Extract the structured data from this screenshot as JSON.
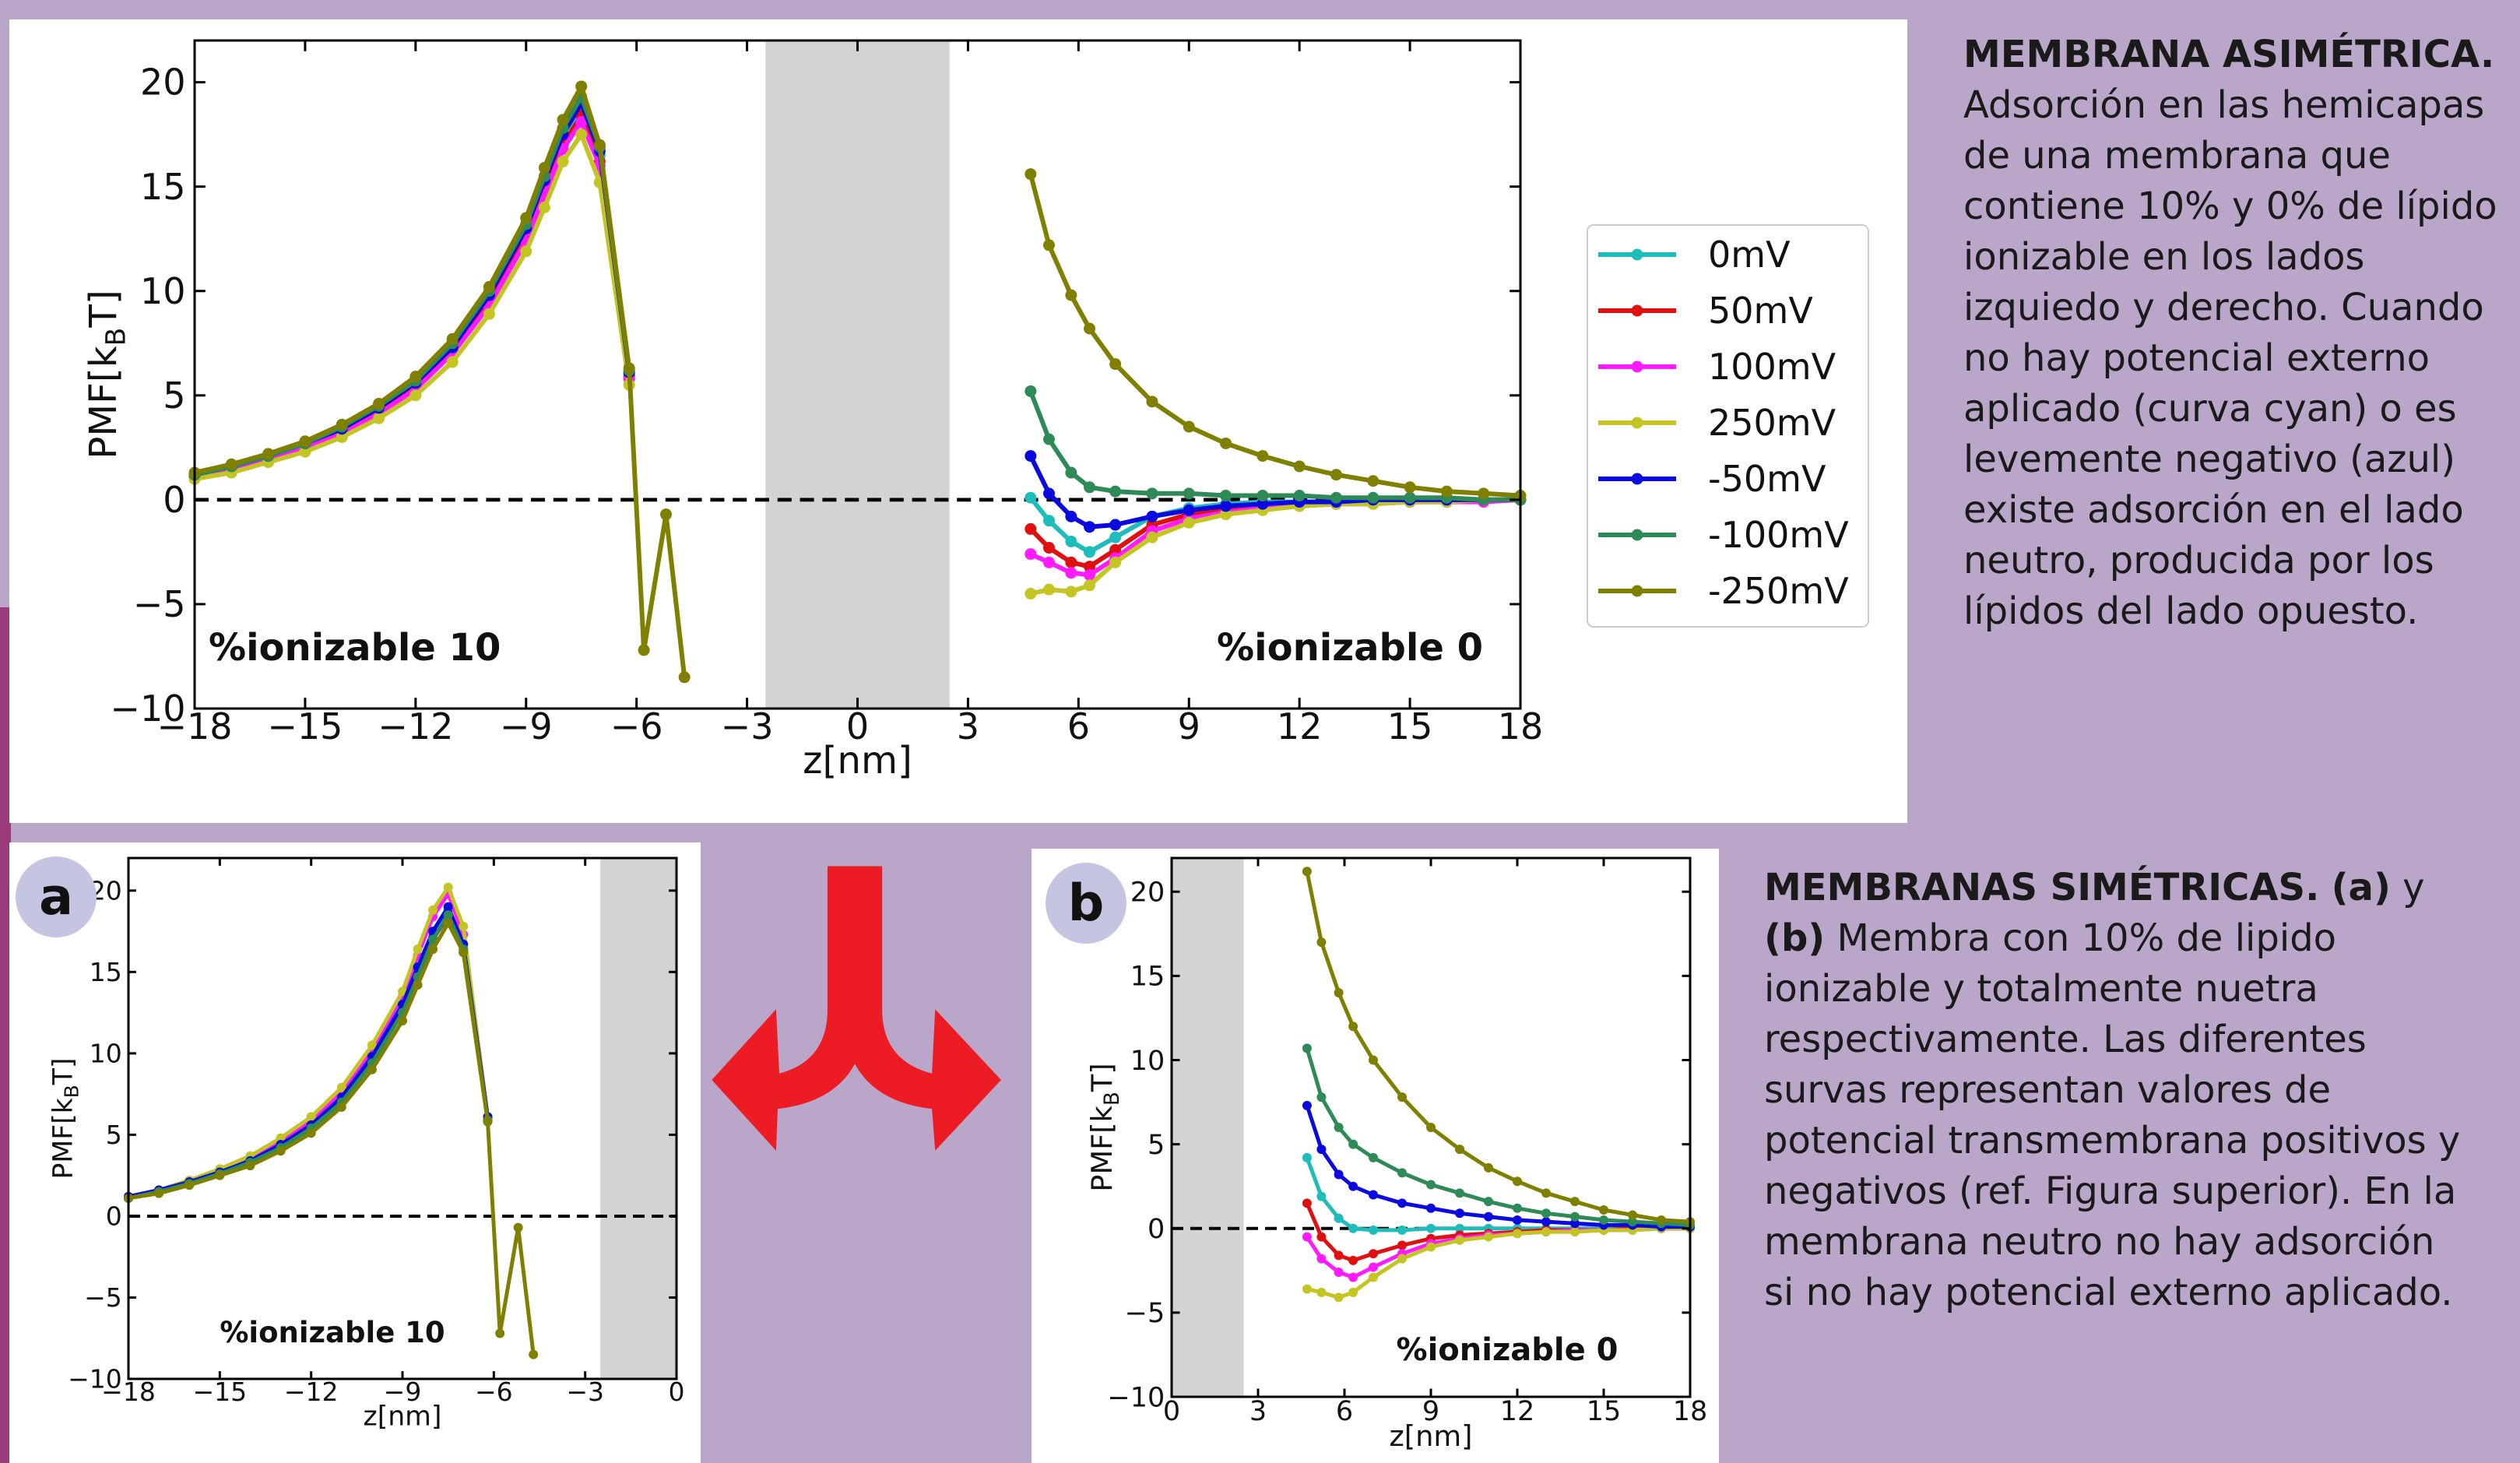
{
  "chart_data": [
    {
      "type": "line",
      "xlabel": "z[nm]",
      "ylabel": [
        "PMF[k",
        "B",
        "T]"
      ],
      "xlim": [
        -18,
        18
      ],
      "ylim": [
        -10,
        22
      ],
      "xticks": [
        {
          "value": -18,
          "label": "−18"
        },
        {
          "value": -15,
          "label": "−15"
        },
        {
          "value": -12,
          "label": "−12"
        },
        {
          "value": -9,
          "label": "−9"
        },
        {
          "value": -6,
          "label": "−6"
        },
        {
          "value": -3,
          "label": "−3"
        },
        0,
        3,
        6,
        9,
        12,
        15,
        18
      ],
      "yticks": [
        {
          "value": -10,
          "label": "−10"
        },
        {
          "value": -5,
          "label": "−5"
        },
        0,
        5,
        10,
        15,
        20
      ],
      "shaded_xrange": [
        -2.5,
        2.5
      ],
      "hline": 0,
      "legend": "outside right",
      "annotations": [
        "%ionizable 10",
        "%ionizable 0"
      ],
      "x": [
        -18,
        -17,
        -16,
        -15,
        -14,
        -13,
        -12,
        -11,
        -10,
        -9,
        -8.5,
        -8,
        -7.5,
        -7,
        -6.2,
        -5.8,
        -5.2,
        -4.7,
        0,
        4.7,
        5.2,
        5.8,
        6.3,
        7,
        8,
        9,
        10,
        11,
        12,
        13,
        14,
        15,
        16,
        17,
        18
      ],
      "series": [
        {
          "name": "0mV",
          "color": "#1fbcbc",
          "values": [
            1.1,
            1.5,
            2.0,
            2.6,
            3.3,
            4.3,
            5.5,
            7.2,
            9.6,
            12.8,
            15.0,
            17.2,
            18.8,
            16.5,
            6.0,
            null,
            null,
            null,
            null,
            0.1,
            -1.0,
            -2.0,
            -2.5,
            -1.8,
            -0.8,
            -0.4,
            -0.2,
            -0.1,
            -0.1,
            -0.1,
            0,
            0,
            0,
            0,
            0
          ]
        },
        {
          "name": "50mV",
          "color": "#e01010",
          "values": [
            1.1,
            1.5,
            2.0,
            2.6,
            3.3,
            4.2,
            5.4,
            7.1,
            9.5,
            12.6,
            14.8,
            17.0,
            18.4,
            16.2,
            5.9,
            null,
            null,
            null,
            null,
            -1.4,
            -2.3,
            -3.0,
            -3.2,
            -2.4,
            -1.2,
            -0.7,
            -0.4,
            -0.3,
            -0.2,
            -0.2,
            -0.1,
            -0.1,
            -0.1,
            0,
            0
          ]
        },
        {
          "name": "100mV",
          "color": "#ff1aff",
          "values": [
            1.0,
            1.4,
            1.9,
            2.5,
            3.2,
            4.1,
            5.3,
            7.0,
            9.3,
            12.4,
            14.6,
            16.8,
            18.1,
            16.0,
            5.8,
            null,
            null,
            null,
            null,
            -2.6,
            -3.0,
            -3.5,
            -3.6,
            -2.8,
            -1.5,
            -0.9,
            -0.6,
            -0.4,
            -0.3,
            -0.2,
            -0.2,
            -0.1,
            -0.1,
            -0.1,
            0
          ]
        },
        {
          "name": "250mV",
          "color": "#c4c422",
          "values": [
            1.0,
            1.3,
            1.8,
            2.3,
            3.0,
            3.9,
            5.0,
            6.6,
            8.9,
            11.9,
            14.0,
            16.2,
            17.5,
            15.2,
            5.5,
            null,
            null,
            null,
            null,
            -4.5,
            -4.3,
            -4.4,
            -4.1,
            -3.0,
            -1.8,
            -1.1,
            -0.7,
            -0.5,
            -0.3,
            -0.2,
            -0.2,
            -0.1,
            -0.1,
            0,
            0
          ]
        },
        {
          "name": "-50mV",
          "color": "#0a0ae0",
          "values": [
            1.2,
            1.6,
            2.1,
            2.7,
            3.4,
            4.4,
            5.6,
            7.3,
            9.8,
            13.0,
            15.3,
            17.5,
            19.0,
            16.7,
            6.1,
            null,
            null,
            null,
            null,
            2.1,
            0.3,
            -0.8,
            -1.3,
            -1.2,
            -0.8,
            -0.5,
            -0.3,
            -0.2,
            -0.1,
            -0.1,
            0,
            0,
            0,
            0,
            0
          ]
        },
        {
          "name": "-100mV",
          "color": "#2e8b57",
          "values": [
            1.2,
            1.6,
            2.1,
            2.7,
            3.5,
            4.5,
            5.7,
            7.5,
            10.0,
            13.2,
            15.5,
            17.8,
            19.3,
            16.9,
            6.2,
            null,
            null,
            null,
            null,
            5.2,
            2.9,
            1.3,
            0.6,
            0.4,
            0.3,
            0.3,
            0.2,
            0.2,
            0.2,
            0.1,
            0.1,
            0.1,
            0.1,
            0,
            0
          ]
        },
        {
          "name": "-250mV",
          "color": "#808000",
          "values": [
            1.3,
            1.7,
            2.2,
            2.8,
            3.6,
            4.6,
            5.9,
            7.7,
            10.2,
            13.5,
            15.9,
            18.2,
            19.8,
            17.0,
            6.3,
            -7.2,
            -0.7,
            -8.5,
            null,
            15.6,
            12.2,
            9.8,
            8.2,
            6.5,
            4.7,
            3.5,
            2.7,
            2.1,
            1.6,
            1.2,
            0.9,
            0.6,
            0.4,
            0.3,
            0.2
          ]
        }
      ]
    },
    {
      "type": "line",
      "panel_label": "a",
      "xlabel": "z[nm]",
      "ylabel": [
        "PMF[k",
        "B",
        "T]"
      ],
      "xlim": [
        -18,
        0
      ],
      "ylim": [
        -10,
        22
      ],
      "xticks": [
        {
          "value": -18,
          "label": "−18"
        },
        {
          "value": -15,
          "label": "−15"
        },
        {
          "value": -12,
          "label": "−12"
        },
        {
          "value": -9,
          "label": "−9"
        },
        {
          "value": -6,
          "label": "−6"
        },
        {
          "value": -3,
          "label": "−3"
        },
        0
      ],
      "yticks": [
        {
          "value": -10,
          "label": "−10"
        },
        {
          "value": -5,
          "label": "−5"
        },
        0,
        5,
        10,
        15,
        20
      ],
      "shaded_xrange": [
        -2.5,
        0
      ],
      "hline": 0,
      "annotations": [
        "%ionizable 10"
      ],
      "x": [
        -18,
        -17,
        -16,
        -15,
        -14,
        -13,
        -12,
        -11,
        -10,
        -9,
        -8.5,
        -8,
        -7.5,
        -7,
        -6.2,
        -5.8,
        -5.2,
        -4.7
      ],
      "series": [
        {
          "color": "#1fbcbc",
          "values": [
            1.1,
            1.5,
            2.0,
            2.6,
            3.3,
            4.3,
            5.5,
            7.2,
            9.6,
            12.8,
            15.0,
            17.2,
            18.8,
            16.5,
            6.0,
            null,
            null,
            null
          ]
        },
        {
          "color": "#e01010",
          "values": [
            1.1,
            1.5,
            2.0,
            2.6,
            3.3,
            4.2,
            5.4,
            7.1,
            9.5,
            12.6,
            14.8,
            17.0,
            18.4,
            16.2,
            5.9,
            null,
            null,
            null
          ]
        },
        {
          "color": "#ff1aff",
          "values": [
            1.2,
            1.6,
            2.1,
            2.8,
            3.5,
            4.6,
            5.9,
            7.6,
            10.2,
            13.5,
            16.0,
            18.4,
            19.8,
            17.3,
            6.0,
            null,
            null,
            null
          ]
        },
        {
          "color": "#c4c422",
          "values": [
            1.2,
            1.6,
            2.2,
            2.9,
            3.7,
            4.8,
            6.1,
            7.9,
            10.5,
            13.8,
            16.4,
            18.8,
            20.2,
            17.8,
            6.1,
            null,
            null,
            null
          ]
        },
        {
          "color": "#0a0ae0",
          "values": [
            1.2,
            1.6,
            2.1,
            2.7,
            3.4,
            4.4,
            5.6,
            7.3,
            9.8,
            13.0,
            15.3,
            17.5,
            19.0,
            16.7,
            6.1,
            null,
            null,
            null
          ]
        },
        {
          "color": "#2e8b57",
          "values": [
            1.1,
            1.5,
            2.0,
            2.6,
            3.3,
            4.2,
            5.4,
            7.0,
            9.4,
            12.5,
            14.7,
            17.0,
            18.5,
            16.4,
            5.9,
            null,
            null,
            null
          ]
        },
        {
          "color": "#808000",
          "values": [
            1.1,
            1.4,
            1.9,
            2.5,
            3.1,
            4.0,
            5.1,
            6.7,
            9.0,
            12.0,
            14.2,
            16.4,
            18.0,
            16.2,
            5.8,
            -7.2,
            -0.7,
            -8.5
          ]
        }
      ]
    },
    {
      "type": "line",
      "panel_label": "b",
      "xlabel": "z[nm]",
      "ylabel": [
        "PMF[k",
        "B",
        "T]"
      ],
      "xlim": [
        0,
        18
      ],
      "ylim": [
        -10,
        22
      ],
      "xticks": [
        0,
        3,
        6,
        9,
        12,
        15,
        18
      ],
      "yticks": [
        {
          "value": -10,
          "label": "−10"
        },
        {
          "value": -5,
          "label": "−5"
        },
        0,
        5,
        10,
        15,
        20
      ],
      "shaded_xrange": [
        0,
        2.5
      ],
      "hline": 0,
      "annotations": [
        "%ionizable 0"
      ],
      "x": [
        4.7,
        5.2,
        5.8,
        6.3,
        7,
        8,
        9,
        10,
        11,
        12,
        13,
        14,
        15,
        16,
        17,
        18
      ],
      "series": [
        {
          "color": "#1fbcbc",
          "values": [
            4.2,
            1.9,
            0.6,
            0,
            -0.1,
            -0.1,
            0,
            0,
            0,
            0,
            0,
            0,
            0,
            0,
            0,
            0
          ]
        },
        {
          "color": "#e01010",
          "values": [
            1.5,
            -0.5,
            -1.6,
            -1.9,
            -1.5,
            -1.0,
            -0.6,
            -0.4,
            -0.3,
            -0.2,
            -0.1,
            -0.1,
            -0.1,
            0,
            0,
            0
          ]
        },
        {
          "color": "#ff1aff",
          "values": [
            -0.5,
            -1.8,
            -2.6,
            -2.9,
            -2.3,
            -1.5,
            -0.9,
            -0.6,
            -0.4,
            -0.3,
            -0.2,
            -0.1,
            -0.1,
            -0.1,
            0,
            0
          ]
        },
        {
          "color": "#c4c422",
          "values": [
            -3.6,
            -3.8,
            -4.1,
            -3.8,
            -2.9,
            -1.8,
            -1.1,
            -0.7,
            -0.5,
            -0.3,
            -0.2,
            -0.2,
            -0.1,
            -0.1,
            0,
            0
          ]
        },
        {
          "color": "#0a0ae0",
          "values": [
            7.3,
            4.7,
            3.2,
            2.5,
            2.0,
            1.5,
            1.2,
            0.9,
            0.7,
            0.5,
            0.4,
            0.3,
            0.2,
            0.2,
            0.1,
            0.1
          ]
        },
        {
          "color": "#2e8b57",
          "values": [
            10.7,
            7.8,
            6.0,
            5.0,
            4.2,
            3.3,
            2.6,
            2.1,
            1.6,
            1.2,
            0.9,
            0.7,
            0.5,
            0.4,
            0.3,
            0.2
          ]
        },
        {
          "color": "#808000",
          "values": [
            21.2,
            17.0,
            14.0,
            12.0,
            10.0,
            7.8,
            6.0,
            4.7,
            3.6,
            2.8,
            2.1,
            1.6,
            1.1,
            0.8,
            0.5,
            0.4
          ]
        }
      ]
    }
  ],
  "texts": {
    "top": {
      "title": "MEMBRANA ASIMÉTRICA.",
      "body": "Adsorción en las hemicapas de una membrana que contiene 10% y 0% de lípido ionizable en los  lados izquiedo y derecho. Cuando no hay potencial externo aplicado (curva cyan) o es levemente negativo (azul) existe adsorción en el lado neutro, producida por los lípidos del lado opuesto."
    },
    "bottom": {
      "title": "MEMBRANAS SIMÉTRICAS.",
      "a": "(a)",
      "conj": "y",
      "b": "(b)",
      "body": "Membra con 10% de lipido ionizable y totalmente nuetra respectivamente. Las diferentes survas representan valores de potencial transmembrana positivos y negativos (ref. Figura superior). En la membrana neutro no hay adsorción si no hay potencial externo aplicado."
    }
  }
}
